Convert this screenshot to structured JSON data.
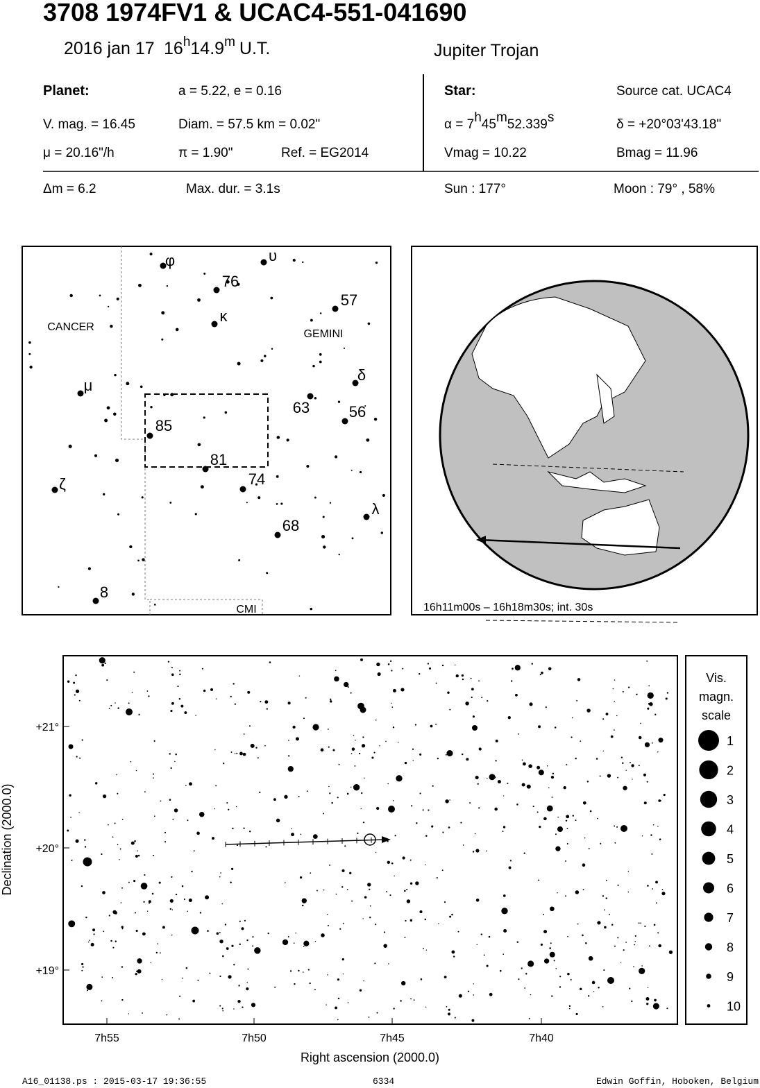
{
  "header": {
    "title": "3708 1974FV1  &  UCAC4-551-041690",
    "date": "2016 jan 17",
    "time_parts": [
      "16",
      "h",
      "14.9",
      "m",
      "U.T."
    ],
    "category": "Jupiter Trojan"
  },
  "planet": {
    "heading": "Planet:",
    "orbit": "a = 5.22, e = 0.16",
    "vmag": "V. mag. = 16.45",
    "diam": "Diam. = 57.5 km = 0.02\"",
    "motion": "μ =  20.16\"/h",
    "parallax": "π =  1.90\"",
    "ref": "Ref. = EG2014"
  },
  "star": {
    "heading": "Star:",
    "source": "Source cat.  UCAC4",
    "ra_parts": [
      "α =  7",
      "h",
      "45",
      "m",
      "52.339",
      "s"
    ],
    "dec": "δ = +20°03'43.18\"",
    "vmag": "Vmag = 10.22",
    "bmag": "Bmag = 11.96"
  },
  "summary": {
    "delta_m": "Δm = 6.2",
    "max_dur": "Max. dur. = 3.1s",
    "sun": "Sun : 177°",
    "moon": "Moon :  79° , 58%"
  },
  "finder": {
    "labels": [
      "φ",
      "υ",
      "76",
      "57",
      "κ",
      "CANCER",
      "GEMINI",
      "δ",
      "μ",
      "63",
      "56",
      "85",
      "81",
      "74",
      "ζ",
      "λ",
      "68",
      "8",
      "CMI"
    ]
  },
  "globe": {
    "caption": "16h11m00s – 16h18m30s; int. 30s"
  },
  "chart": {
    "ylabel": "Declination (2000.0)",
    "xlabel": "Right ascension (2000.0)",
    "ytick_labels": [
      "+21°",
      "+20°",
      "+19°"
    ],
    "xtick_labels": [
      "7h55",
      "7h50",
      "7h45",
      "7h40"
    ],
    "legend_title": [
      "Vis.",
      "magn.",
      "scale"
    ],
    "legend_items": [
      "1",
      "2",
      "3",
      "4",
      "5",
      "6",
      "7",
      "8",
      "9",
      "10"
    ]
  },
  "footer": {
    "left": "A16_01138.ps : 2015-03-17 19:36:55",
    "center": "6334",
    "right": "Edwin Goffin, Hoboken, Belgium"
  }
}
